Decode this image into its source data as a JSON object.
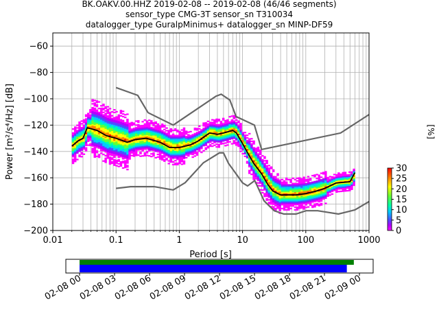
{
  "titles": {
    "line1": "BK.OAKV.00.HHZ   2019-02-08 -- 2019-02-08  (46/46 segments)",
    "line2": "sensor_type CMG-3T sensor_sn T310034",
    "line3": "datalogger_type GuralpMinimus+ datalogger_sn MINP-DF59"
  },
  "chart_data": {
    "type": "heatmap",
    "xlabel": "Period [s]",
    "ylabel": "Power [m²/s⁴/Hz] [dB]",
    "xscale": "log",
    "xlim": [
      0.01,
      1000
    ],
    "ylim": [
      -200,
      -50
    ],
    "grid": true,
    "x_ticks": [
      "0.01",
      "0.1",
      "1",
      "10",
      "100",
      "1000"
    ],
    "y_ticks": [
      "−200",
      "−180",
      "−160",
      "−140",
      "−120",
      "−100",
      "−80",
      "−60"
    ],
    "colorbar": {
      "label": "[%]",
      "range": [
        0,
        30
      ],
      "ticks": [
        "0",
        "5",
        "10",
        "15",
        "20",
        "25",
        "30"
      ]
    },
    "mode_line": {
      "name": "mode",
      "x": [
        0.02,
        0.025,
        0.03,
        0.035,
        0.05,
        0.07,
        0.1,
        0.15,
        0.2,
        0.3,
        0.5,
        0.7,
        1.0,
        1.5,
        2.0,
        3.0,
        4.0,
        5.0,
        7.0,
        8.0,
        10.0,
        12.0,
        15.0,
        20.0,
        25.0,
        30.0,
        40.0,
        50.0,
        70.0,
        100.0,
        150.0,
        200.0,
        300.0,
        500.0,
        600.0
      ],
      "y": [
        -136,
        -132,
        -130,
        -122,
        -124,
        -128,
        -130,
        -133,
        -131,
        -130,
        -133,
        -137,
        -137,
        -135,
        -132,
        -126,
        -127,
        -126,
        -124,
        -126,
        -134,
        -141,
        -149,
        -157,
        -165,
        -170,
        -173,
        -173,
        -173,
        -172,
        -170,
        -168,
        -164,
        -163,
        -156
      ]
    },
    "nhnm": {
      "x": [
        0.1,
        0.22,
        0.32,
        0.8,
        3.8,
        4.6,
        6.3,
        7.9,
        15.4,
        20.0,
        354.8,
        1000.0
      ],
      "y": [
        -91.5,
        -97.4,
        -110.5,
        -120.0,
        -98.0,
        -96.5,
        -101.0,
        -113.5,
        -120.0,
        -138.5,
        -126.0,
        -112.0
      ]
    },
    "nlnm": {
      "x": [
        0.1,
        0.17,
        0.4,
        0.8,
        1.24,
        2.4,
        4.3,
        5.0,
        6.0,
        10.0,
        12.0,
        15.6,
        21.9,
        31.6,
        45.0,
        70.0,
        101.0,
        154.0,
        328.0,
        600.0,
        1000.0
      ],
      "y": [
        -168.0,
        -166.7,
        -166.7,
        -169.2,
        -163.7,
        -148.6,
        -141.1,
        -141.1,
        -149.0,
        -163.8,
        -166.2,
        -162.1,
        -177.5,
        -185.0,
        -187.5,
        -187.5,
        -185.0,
        -185.0,
        -187.5,
        -184.4,
        -178.0
      ]
    },
    "time_axis": {
      "tick_labels": [
        "02-08 00",
        "02-08 03",
        "02-08 06",
        "02-08 09",
        "02-08 12",
        "02-08 15",
        "02-08 18",
        "02-08 21",
        "02-09 00"
      ],
      "data_coverage": [
        0.0,
        0.98
      ],
      "psd_coverage": [
        0.0,
        0.955
      ],
      "data_color": "#008000",
      "psd_color": "#0000ff"
    },
    "colors": {
      "model_lines": "#666666",
      "mode_line": "#000000"
    }
  }
}
